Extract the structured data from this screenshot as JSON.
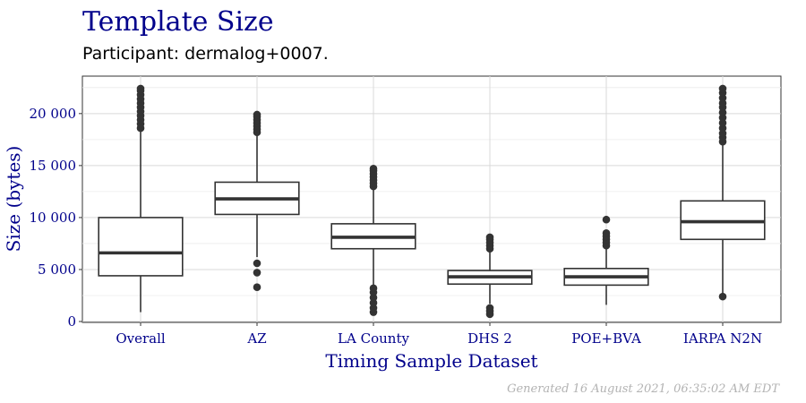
{
  "chart_data": {
    "type": "boxplot",
    "title": "Template Size",
    "subtitle": "Participant: dermalog+0007.",
    "xlabel": "Timing Sample Dataset",
    "ylabel": "Size (bytes)",
    "caption": "Generated 16 August 2021, 06:35:02 AM EDT",
    "ylim": [
      0,
      23000
    ],
    "yticks": [
      0,
      5000,
      10000,
      15000,
      20000
    ],
    "ytick_labels": [
      "0",
      "5 000",
      "10 000",
      "15 000",
      "20 000"
    ],
    "grid": true,
    "categories": [
      "Overall",
      "AZ",
      "LA County",
      "DHS 2",
      "POE+BVA",
      "IARPA N2N"
    ],
    "boxes": [
      {
        "category": "Overall",
        "whisker_low": 900,
        "q1": 4400,
        "median": 6600,
        "q3": 10000,
        "whisker_high": 18400,
        "outliers_high": [
          18600,
          19000,
          19400,
          19800,
          20200,
          20600,
          21000,
          21400,
          21800,
          22200,
          22400
        ],
        "outliers_low": []
      },
      {
        "category": "AZ",
        "whisker_low": 6200,
        "q1": 10300,
        "median": 11800,
        "q3": 13400,
        "whisker_high": 18000,
        "outliers_high": [
          18200,
          18500,
          18800,
          19100,
          19400,
          19700,
          19900
        ],
        "outliers_low": [
          3300,
          4700,
          5600
        ]
      },
      {
        "category": "LA County",
        "whisker_low": 3400,
        "q1": 7000,
        "median": 8100,
        "q3": 9400,
        "whisker_high": 12800,
        "outliers_high": [
          13000,
          13300,
          13600,
          13900,
          14200,
          14500,
          14700
        ],
        "outliers_low": [
          900,
          1300,
          1800,
          2300,
          2800,
          3200
        ]
      },
      {
        "category": "DHS 2",
        "whisker_low": 1700,
        "q1": 3600,
        "median": 4300,
        "q3": 4900,
        "whisker_high": 6800,
        "outliers_high": [
          7000,
          7300,
          7600,
          7900,
          8100
        ],
        "outliers_low": [
          700,
          1000,
          1300
        ]
      },
      {
        "category": "POE+BVA",
        "whisker_low": 1600,
        "q1": 3500,
        "median": 4300,
        "q3": 5100,
        "whisker_high": 7100,
        "outliers_high": [
          7300,
          7600,
          7900,
          8200,
          8500,
          9800
        ],
        "outliers_low": []
      },
      {
        "category": "IARPA N2N",
        "whisker_low": 2400,
        "q1": 7900,
        "median": 9600,
        "q3": 11600,
        "whisker_high": 17000,
        "outliers_high": [
          17300,
          17700,
          18100,
          18600,
          19100,
          19600,
          20100,
          20600,
          21000,
          21500,
          22000,
          22400
        ],
        "outliers_low": [
          2400
        ]
      }
    ]
  }
}
